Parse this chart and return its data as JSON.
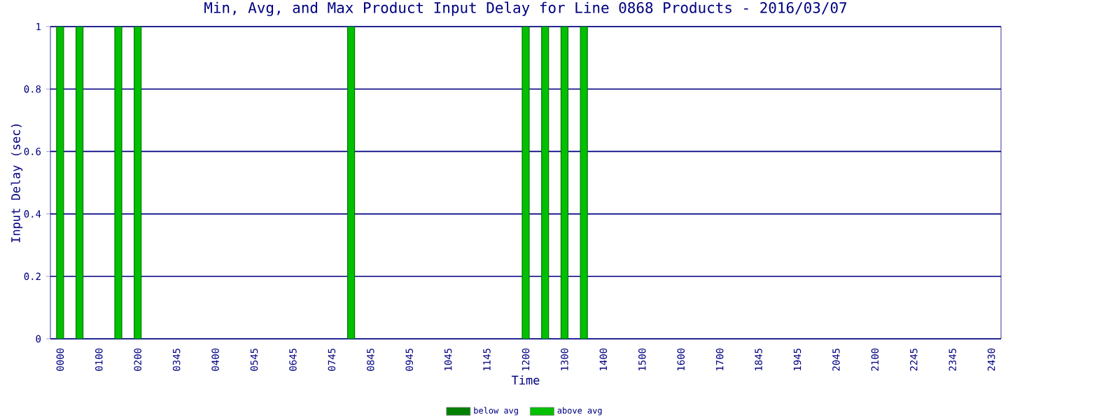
{
  "chart_data": {
    "type": "bar",
    "title": "Min, Avg, and Max Product Input Delay for Line 0868 Products - 2016/03/07",
    "xlabel": "Time",
    "ylabel": "Input Delay (sec)",
    "categories": [
      "0000",
      null,
      "0100",
      null,
      "0200",
      null,
      "0345",
      null,
      "0400",
      null,
      "0545",
      null,
      "0645",
      null,
      "0745",
      null,
      "0845",
      null,
      "0945",
      null,
      "1045",
      null,
      "1145",
      null,
      "1200",
      null,
      "1300",
      null,
      "1400",
      null,
      "1500",
      null,
      "1600",
      null,
      "1700",
      null,
      "1845",
      null,
      "1945",
      null,
      "2045",
      null,
      "2100",
      null,
      "2245",
      null,
      "2345",
      null,
      "2430"
    ],
    "series": [
      {
        "name": "below avg",
        "color": "#008000",
        "values": [
          null,
          null,
          null,
          null,
          null,
          null,
          null,
          null,
          null,
          null,
          null,
          null,
          null,
          null,
          null,
          null,
          null,
          null,
          null,
          null,
          null,
          null,
          null,
          null,
          null,
          null,
          null,
          null,
          null,
          null,
          null,
          null,
          null,
          null,
          null,
          null,
          null,
          null,
          null,
          null,
          null,
          null,
          null,
          null,
          null,
          null,
          null,
          null,
          null
        ]
      },
      {
        "name": "above avg",
        "color": "#00c000",
        "values": [
          1,
          1,
          null,
          1,
          1,
          null,
          null,
          null,
          null,
          null,
          null,
          null,
          null,
          null,
          null,
          1,
          null,
          null,
          null,
          null,
          null,
          null,
          null,
          null,
          1,
          1,
          1,
          1,
          null,
          null,
          null,
          null,
          null,
          null,
          null,
          null,
          null,
          null,
          null,
          null,
          null,
          null,
          null,
          null,
          null,
          null,
          null,
          null,
          null
        ]
      }
    ],
    "ylim": [
      0,
      1
    ],
    "yticks": [
      0,
      0.2,
      0.4,
      0.6,
      0.8,
      1
    ],
    "grid": "y",
    "legend": "bottom"
  }
}
